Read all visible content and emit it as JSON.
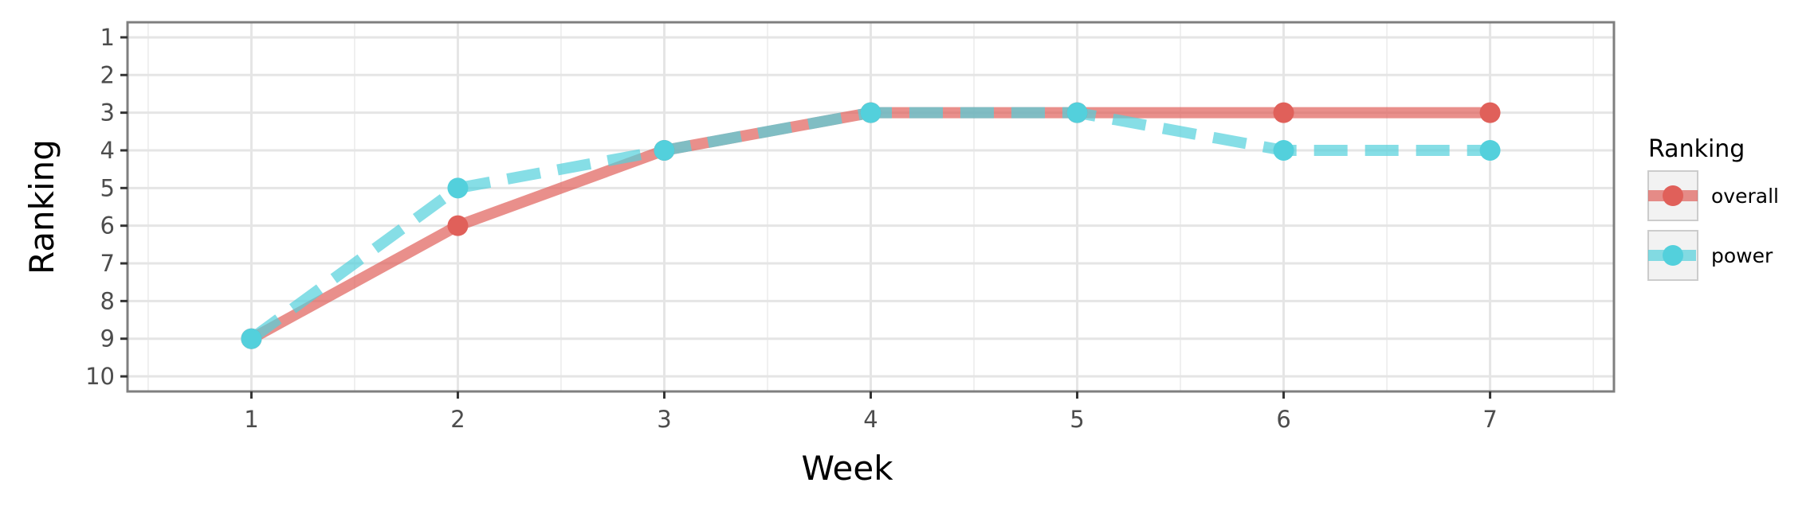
{
  "chart_data": {
    "type": "line",
    "xlabel": "Week",
    "ylabel": "Ranking",
    "x": [
      1,
      2,
      3,
      4,
      5,
      6,
      7
    ],
    "xlim": [
      0.4,
      7.6
    ],
    "ylim": [
      10.4,
      0.6
    ],
    "y_reversed": true,
    "x_ticks": [
      "1",
      "2",
      "3",
      "4",
      "5",
      "6",
      "7"
    ],
    "y_ticks": [
      "1",
      "2",
      "3",
      "4",
      "5",
      "6",
      "7",
      "8",
      "9",
      "10"
    ],
    "grid": true,
    "legend": {
      "title": "Ranking",
      "placement": "right"
    },
    "series": [
      {
        "name": "overall",
        "values": [
          9,
          6,
          4,
          3,
          3,
          3,
          3
        ],
        "color": "#e0605a",
        "line_style": "solid"
      },
      {
        "name": "power",
        "values": [
          9,
          5,
          4,
          3,
          3,
          4,
          4
        ],
        "color": "#53d0dc",
        "line_style": "dashed"
      }
    ]
  }
}
